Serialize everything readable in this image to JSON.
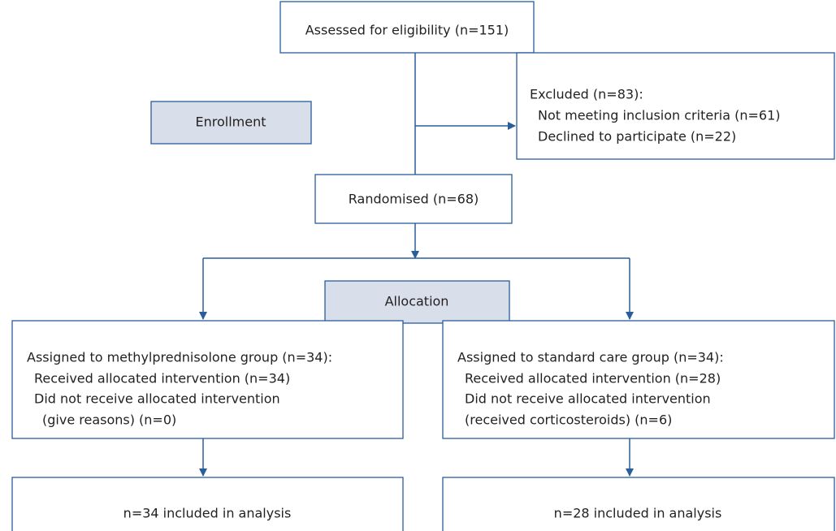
{
  "stages": [
    "Enrollment",
    "Allocation"
  ],
  "nodes": [
    {
      "lines": [
        "Assessed for eligibility (n=151)"
      ]
    },
    {
      "lines": [
        "Excluded (n=83):",
        "Not meeting inclusion criteria (n=61)",
        "Declined to participate (n=22)"
      ]
    },
    {
      "lines": [
        "Randomised (n=68)"
      ]
    },
    {
      "lines": [
        "Assigned to methylprednisolone group (n=34):",
        "Received allocated intervention (n=34)",
        "Did not receive allocated intervention",
        "(give reasons) (n=0)"
      ]
    },
    {
      "lines": [
        "Assigned to standard care group (n=34):",
        "Received allocated intervention (n=28)",
        "Did not receive allocated intervention",
        "(received corticosteroids) (n=6)"
      ]
    },
    {
      "lines": [
        "n=34 included in analysis"
      ]
    },
    {
      "lines": [
        "n=28 included in analysis"
      ]
    }
  ]
}
